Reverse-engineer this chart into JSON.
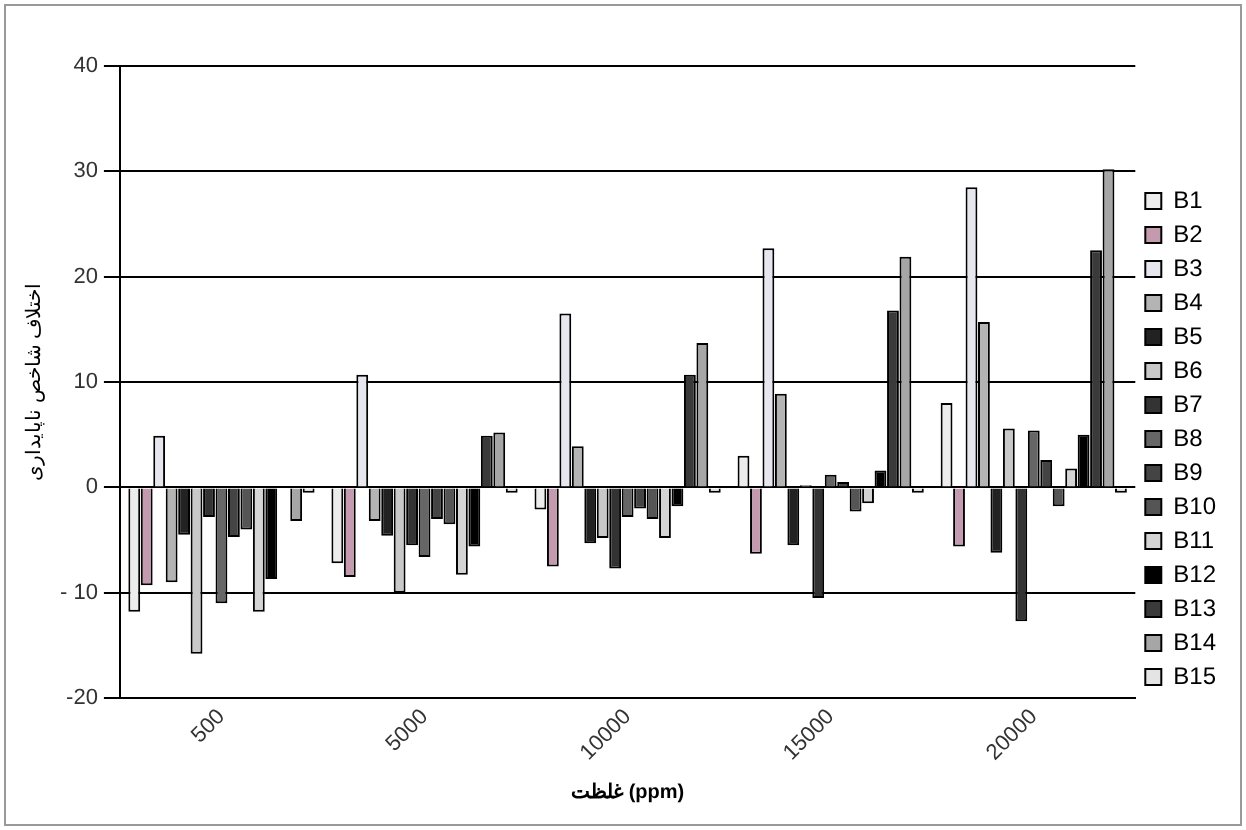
{
  "chart_data": {
    "type": "bar",
    "xlabel": "غلظت (ppm)",
    "ylabel": "اختلاف شاخص ناپایداری",
    "categories": [
      "500",
      "5000",
      "10000",
      "15000",
      "20000"
    ],
    "series": [
      {
        "name": "B1",
        "color": "#ececec",
        "values": [
          -11.8,
          -7.2,
          -2.1,
          3,
          8
        ]
      },
      {
        "name": "B2",
        "color": "#c49aae",
        "values": [
          -9.3,
          -8.5,
          -7.5,
          -6.3,
          -5.6
        ]
      },
      {
        "name": "B3",
        "color": "#e6e6ee",
        "values": [
          4.9,
          10.7,
          16.5,
          22.7,
          28.5
        ]
      },
      {
        "name": "B4",
        "color": "#b4b4b4",
        "values": [
          -9,
          -3.2,
          3.9,
          8.9,
          15.7
        ]
      },
      {
        "name": "B5",
        "color": "#222222",
        "values": [
          -4.5,
          -4.6,
          -5.3,
          -5.5,
          -6.2
        ]
      },
      {
        "name": "B6",
        "color": "#c8c8c8",
        "values": [
          -15.8,
          -10,
          -4.8,
          0.2,
          5.6
        ]
      },
      {
        "name": "B7",
        "color": "#333333",
        "values": [
          -2.8,
          -5.5,
          -7.7,
          -10.5,
          -12.7
        ]
      },
      {
        "name": "B8",
        "color": "#666666",
        "values": [
          -11,
          -6.6,
          -2.8,
          1.2,
          5.4
        ]
      },
      {
        "name": "B9",
        "color": "#444444",
        "values": [
          -4.7,
          -3,
          -2,
          0.5,
          2.6
        ]
      },
      {
        "name": "B10",
        "color": "#555555",
        "values": [
          -4,
          -3.5,
          -3,
          -2.3,
          -1.8
        ]
      },
      {
        "name": "B11",
        "color": "#d4d4d4",
        "values": [
          -11.8,
          -8.3,
          -4.8,
          -1.5,
          1.8
        ]
      },
      {
        "name": "B12",
        "color": "#000000",
        "values": [
          -8.7,
          -5.6,
          -1.8,
          1.6,
          5
        ]
      },
      {
        "name": "B13",
        "color": "#3a3a3a",
        "values": [
          0,
          4.9,
          10.7,
          16.8,
          22.5
        ]
      },
      {
        "name": "B14",
        "color": "#a6a6a6",
        "values": [
          -3.2,
          5.2,
          13.7,
          21.9,
          30.2
        ]
      },
      {
        "name": "B15",
        "color": "#e4e4e4",
        "values": [
          -0.5,
          -0.5,
          -0.5,
          -0.5,
          -0.5
        ]
      }
    ],
    "ylim": [
      -20,
      40
    ],
    "yticks": [
      40,
      30,
      20,
      10,
      0,
      {
        "value": -10,
        "label": "- 10"
      },
      -20
    ],
    "grid": "y",
    "legend": "right"
  }
}
